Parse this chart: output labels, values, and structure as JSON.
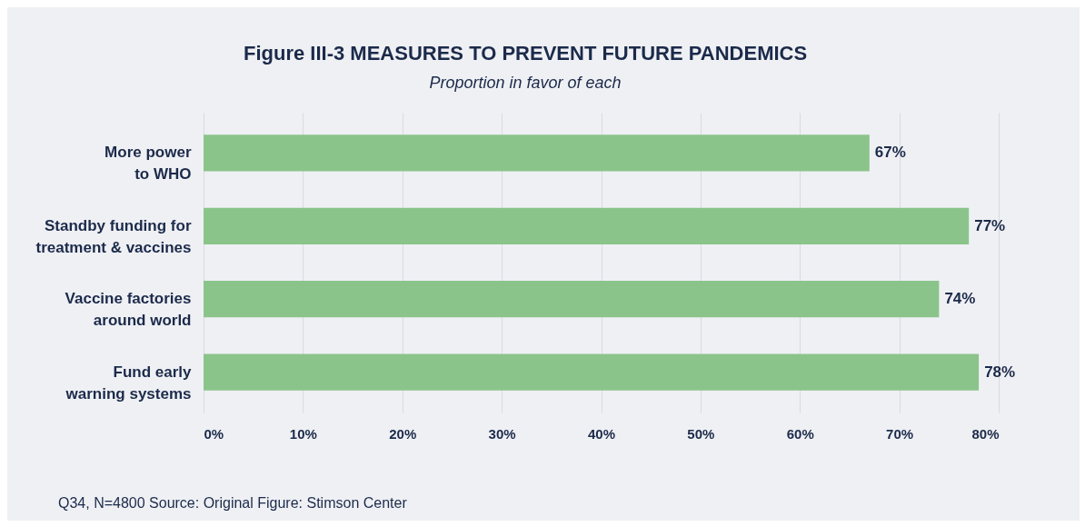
{
  "chart_data": {
    "type": "bar",
    "orientation": "horizontal",
    "title": "Figure III-3 MEASURES TO PREVENT FUTURE PANDEMICS",
    "subtitle": "Proportion in favor of each",
    "categories": [
      "More power to WHO",
      "Standby funding for treatment & vaccines",
      "Vaccine factories around world",
      "Fund early warning systems"
    ],
    "values": [
      67,
      77,
      74,
      78
    ],
    "value_labels": [
      "67%",
      "77%",
      "74%",
      "78%"
    ],
    "color": "#8bc48a",
    "xlim": [
      0,
      80
    ],
    "xticks": [
      {
        "value": 0,
        "label": "0%"
      },
      {
        "value": 10,
        "label": "10%"
      },
      {
        "value": 20,
        "label": "20%"
      },
      {
        "value": 30,
        "label": "30%"
      },
      {
        "value": 40,
        "label": "40%"
      },
      {
        "value": 50,
        "label": "50%"
      },
      {
        "value": 60,
        "label": "60%"
      },
      {
        "value": 70,
        "label": "70%"
      },
      {
        "value": 80,
        "label": "80%"
      }
    ],
    "grid": "x",
    "annotations": [
      "Q34, N=4800 Source: Original Figure: Stimson Center"
    ]
  }
}
